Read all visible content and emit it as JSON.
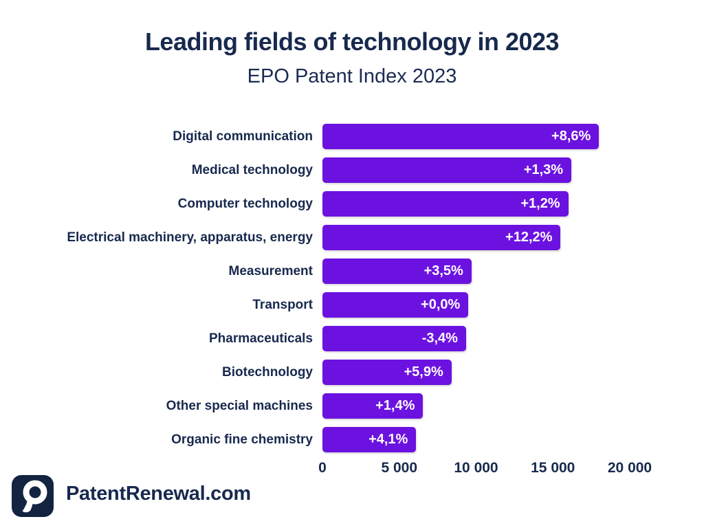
{
  "header": {
    "title": "Leading fields of technology in 2023",
    "subtitle": "EPO Patent Index 2023"
  },
  "footer": {
    "brand": "PatentRenewal.com",
    "logo_icon": "magnifier-p-icon"
  },
  "colors": {
    "bar_purple": "#6C12E0",
    "text_navy": "#18294E",
    "logo_navy": "#132440",
    "value_label_white": "#FFFFFF",
    "background": "#FFFFFF"
  },
  "chart_data": {
    "type": "bar",
    "orientation": "horizontal",
    "title": "Leading fields of technology in 2023",
    "subtitle": "EPO Patent Index 2023",
    "categories": [
      "Digital communication",
      "Medical technology",
      "Computer technology",
      "Electrical machinery, apparatus, energy",
      "Measurement",
      "Transport",
      "Pharmaceuticals",
      "Biotechnology",
      "Other special machines",
      "Organic fine chemistry"
    ],
    "values": [
      18000,
      16200,
      16000,
      15500,
      9700,
      9500,
      9350,
      8400,
      6550,
      6100
    ],
    "value_labels": [
      "+8,6%",
      "+1,3%",
      "+1,2%",
      "+12,2%",
      "+3,5%",
      "+0,0%",
      "-3,4%",
      "+5,9%",
      "+1,4%",
      "+4,1%"
    ],
    "xlabel": "",
    "ylabel": "",
    "xlim": [
      0,
      20000
    ],
    "x_ticks": [
      "0",
      "5 000",
      "10 000",
      "15 000",
      "20 000"
    ],
    "x_tick_values": [
      0,
      5000,
      10000,
      15000,
      20000
    ],
    "grid": false,
    "legend": "none",
    "bar_color": "#6C12E0",
    "value_labels_position": "inside-end"
  }
}
